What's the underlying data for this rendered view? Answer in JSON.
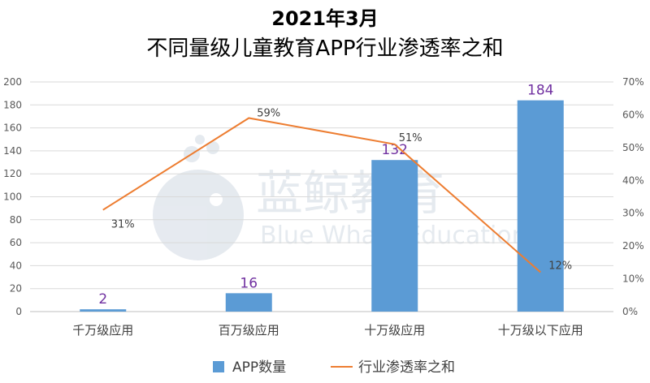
{
  "chart_data": {
    "type": "bar",
    "title": "2021年3月",
    "subtitle": "不同量级儿童教育APP行业渗透率之和",
    "categories": [
      "千万级应用",
      "百万级应用",
      "十万级应用",
      "十万级以下应用"
    ],
    "series": [
      {
        "name": "APP数量",
        "type": "bar",
        "axis": "left",
        "values": [
          2,
          16,
          132,
          184
        ],
        "labels": [
          "2",
          "16",
          "132",
          "184"
        ],
        "color": "#5b9bd5"
      },
      {
        "name": "行业渗透率之和",
        "type": "line",
        "axis": "right",
        "values": [
          31,
          59,
          51,
          12
        ],
        "labels": [
          "31%",
          "59%",
          "51%",
          "12%"
        ],
        "color": "#ed7d31"
      }
    ],
    "y_left": {
      "range": [
        0,
        200
      ],
      "ticks": [
        "0",
        "20",
        "40",
        "60",
        "80",
        "100",
        "120",
        "140",
        "160",
        "180",
        "200"
      ]
    },
    "y_right": {
      "range": [
        0,
        70
      ],
      "ticks": [
        "0%",
        "10%",
        "20%",
        "30%",
        "40%",
        "50%",
        "60%",
        "70%"
      ]
    },
    "grid": true,
    "legend": "bottom"
  },
  "watermark": {
    "cn": "蓝鲸教育",
    "en": "Blue Whale Education"
  }
}
